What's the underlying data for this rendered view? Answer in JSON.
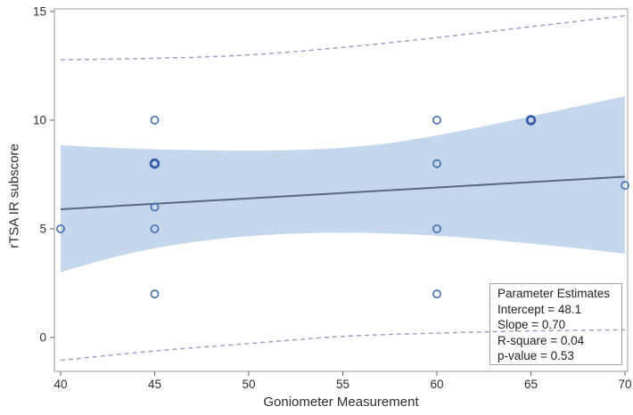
{
  "chart_data": {
    "type": "scatter",
    "title": "",
    "xlabel": "Goniometer Measurement",
    "ylabel": "rTSA IR subscore",
    "xlim": [
      39.67,
      70.14
    ],
    "ylim": [
      -1.56,
      15.12
    ],
    "x_ticks": [
      40,
      45,
      50,
      55,
      60,
      65,
      70
    ],
    "y_ticks": [
      0,
      5,
      10,
      15
    ],
    "grid": "off",
    "legend": "none",
    "points": [
      {
        "x": 40,
        "y": 5,
        "bold": false
      },
      {
        "x": 45,
        "y": 10,
        "bold": false
      },
      {
        "x": 45,
        "y": 8,
        "bold": true
      },
      {
        "x": 45,
        "y": 6,
        "bold": false
      },
      {
        "x": 45,
        "y": 5,
        "bold": false
      },
      {
        "x": 45,
        "y": 2,
        "bold": false
      },
      {
        "x": 60,
        "y": 10,
        "bold": false
      },
      {
        "x": 60,
        "y": 8,
        "bold": false
      },
      {
        "x": 60,
        "y": 5,
        "bold": false
      },
      {
        "x": 60,
        "y": 2,
        "bold": false
      },
      {
        "x": 65,
        "y": 10,
        "bold": true
      },
      {
        "x": 70,
        "y": 7,
        "bold": false
      }
    ],
    "regression_line": {
      "x": [
        40,
        70
      ],
      "y": [
        5.9,
        7.4
      ]
    },
    "confidence_band": {
      "x": [
        40,
        42.5,
        45,
        47.5,
        50,
        52.5,
        55,
        57.5,
        60,
        62.5,
        65,
        67.5,
        70
      ],
      "upper": [
        8.85,
        8.74,
        8.66,
        8.62,
        8.6,
        8.63,
        8.73,
        8.95,
        9.3,
        9.72,
        10.18,
        10.64,
        11.1
      ],
      "lower": [
        3.0,
        3.62,
        4.1,
        4.44,
        4.66,
        4.78,
        4.82,
        4.78,
        4.68,
        4.52,
        4.32,
        4.1,
        3.85
      ]
    },
    "prediction_limits": {
      "upper": {
        "x": [
          40,
          45,
          50,
          55,
          60,
          65,
          70
        ],
        "y": [
          12.78,
          12.85,
          13.0,
          13.35,
          13.8,
          14.3,
          14.8
        ]
      },
      "lower": {
        "x": [
          40,
          45,
          50,
          55,
          60,
          65,
          70
        ],
        "y": [
          -1.05,
          -0.62,
          -0.28,
          0.05,
          0.2,
          0.3,
          0.35
        ]
      }
    },
    "param_box": {
      "title": "Parameter Estimates",
      "lines": [
        "Intercept = 48.1",
        "Slope = 0.70",
        "R-square = 0.04",
        "p-value = 0.53"
      ]
    },
    "colors": {
      "band_fill": "#c5d7ec",
      "regression_line": "#5a6786",
      "prediction_dash": "#969ac8",
      "marker": "#4a72b4",
      "marker_bold": "#3a5ea8",
      "frame": "#999999",
      "tick_mark": "#666666",
      "tick_label": "#2e2e2e"
    }
  }
}
